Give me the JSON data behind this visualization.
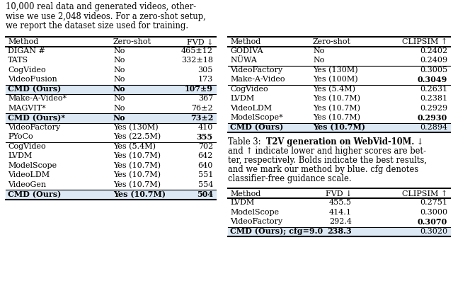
{
  "intro_lines": [
    "10,000 real data and generated videos, other-",
    "wise we use 2,048 videos. For a zero-shot setup,",
    "we report the dataset size used for training."
  ],
  "table2_headers": [
    "Method",
    "Zero-shot",
    "FVD ↓"
  ],
  "table2_groups": [
    {
      "rows": [
        [
          "DIGAN #",
          "No",
          "465±12"
        ],
        [
          "TATS",
          "No",
          "332±18"
        ],
        [
          "CogVideo",
          "No",
          "305"
        ],
        [
          "VideoFusion",
          "No",
          "173"
        ]
      ],
      "highlight": false,
      "bold_fvd": []
    },
    {
      "rows": [
        [
          "CMD (Ours)",
          "No",
          "107±9"
        ]
      ],
      "highlight": true,
      "bold_fvd": [
        0
      ]
    },
    {
      "rows": [
        [
          "Make-A-Video*",
          "No",
          "367"
        ],
        [
          "MAGVIT*",
          "No",
          "76±2"
        ]
      ],
      "highlight": false,
      "bold_fvd": []
    },
    {
      "rows": [
        [
          "CMD (Ours)*",
          "No",
          "73±2"
        ]
      ],
      "highlight": true,
      "bold_fvd": [
        0
      ]
    },
    {
      "rows": [
        [
          "VideoFactory",
          "Yes (130M)",
          "410"
        ],
        [
          "PYoCo",
          "Yes (22.5M)",
          "355"
        ]
      ],
      "highlight": false,
      "bold_fvd": [
        1
      ]
    },
    {
      "rows": [
        [
          "CogVideo",
          "Yes (5.4M)",
          "702"
        ],
        [
          "LVDM",
          "Yes (10.7M)",
          "642"
        ],
        [
          "ModelScope",
          "Yes (10.7M)",
          "640"
        ],
        [
          "VideoLDM",
          "Yes (10.7M)",
          "551"
        ],
        [
          "VideoGen",
          "Yes (10.7M)",
          "554"
        ]
      ],
      "highlight": false,
      "bold_fvd": []
    },
    {
      "rows": [
        [
          "CMD (Ours)",
          "Yes (10.7M)",
          "504"
        ]
      ],
      "highlight": true,
      "bold_fvd": [
        0
      ]
    }
  ],
  "table3_headers": [
    "Method",
    "Zero-shot",
    "CLIPSIM ↑"
  ],
  "table3_groups": [
    {
      "rows": [
        [
          "GODIVA",
          "No",
          "0.2402"
        ],
        [
          "NÜWA",
          "No",
          "0.2409"
        ]
      ],
      "highlight": false,
      "bold_clip": []
    },
    {
      "rows": [
        [
          "VideoFactory",
          "Yes (130M)",
          "0.3005"
        ],
        [
          "Make-A-Video",
          "Yes (100M)",
          "0.3049"
        ]
      ],
      "highlight": false,
      "bold_clip": [
        1
      ]
    },
    {
      "rows": [
        [
          "CogVideo",
          "Yes (5.4M)",
          "0.2631"
        ],
        [
          "LVDM",
          "Yes (10.7M)",
          "0.2381"
        ],
        [
          "VideoLDM",
          "Yes (10.7M)",
          "0.2929"
        ],
        [
          "ModelScope*",
          "Yes (10.7M)",
          "0.2930"
        ]
      ],
      "highlight": false,
      "bold_clip": [
        3
      ]
    },
    {
      "rows": [
        [
          "CMD (Ours)",
          "Yes (10.7M)",
          "0.2894"
        ]
      ],
      "highlight": true,
      "bold_clip": []
    }
  ],
  "caption_lines": [
    [
      "Table 3:  ",
      false
    ],
    [
      "T2V generation on WebVid-10M.",
      true
    ],
    [
      " ↓",
      false
    ]
  ],
  "caption_rest_lines": [
    "and ↑ indicate lower and higher scores are bet-",
    "ter, respectively. Bolds indicate the best results,",
    "and we mark our method by blue. cfg denotes",
    "classifier-free guidance scale."
  ],
  "table4_headers": [
    "Method",
    "FVD ↓",
    "CLIPSIM ↑"
  ],
  "table4_groups": [
    {
      "rows": [
        [
          "LVDM",
          "455.5",
          "0.2751"
        ],
        [
          "ModelScope",
          "414.1",
          "0.3000"
        ],
        [
          "VideoFactory",
          "292.4",
          "0.3070"
        ]
      ],
      "highlight": false,
      "bold_fvd": [],
      "bold_clip": [
        2
      ]
    },
    {
      "rows": [
        [
          "CMD (Ours); cfg=9.0",
          "238.3",
          "0.3020"
        ]
      ],
      "highlight": true,
      "bold_fvd": [
        0
      ],
      "bold_clip": []
    }
  ],
  "highlight_color": "#dce9f5",
  "bg_color": "#ffffff",
  "text_color": "#000000",
  "fontsize": 8.0
}
